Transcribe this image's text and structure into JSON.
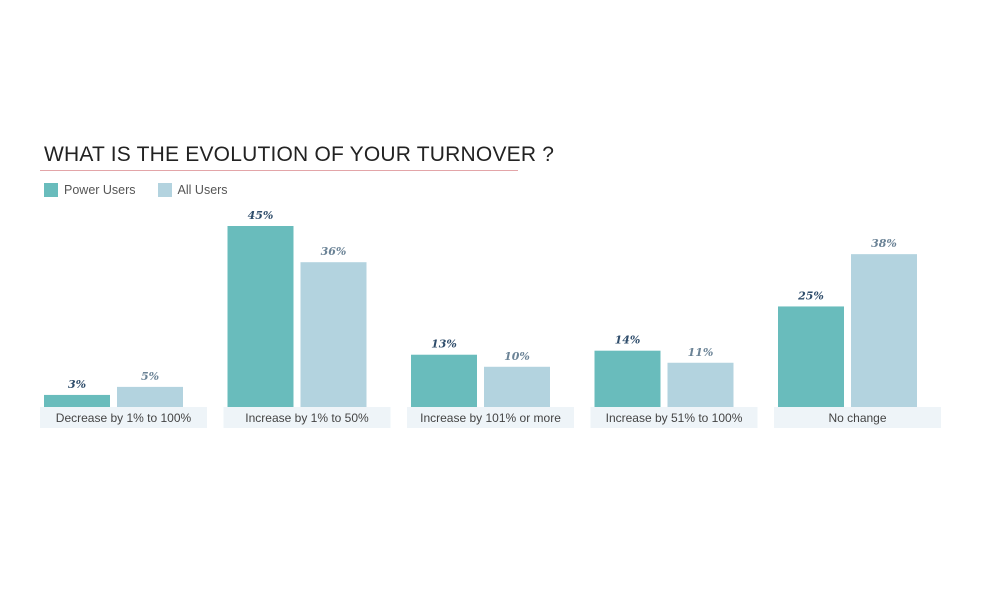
{
  "chart_data": {
    "type": "bar",
    "title": "WHAT IS THE EVOLUTION OF YOUR TURNOVER ?",
    "categories": [
      "Decrease by 1% to 100%",
      "Increase by 1% to 50%",
      "Increase by 101% or more",
      "Increase by 51% to 100%",
      "No change"
    ],
    "series": [
      {
        "name": "Power Users",
        "values": [
          3,
          45,
          13,
          14,
          25
        ],
        "labels": [
          "3%",
          "45%",
          "13%",
          "14%",
          "25%"
        ],
        "color": "#69bcbc",
        "label_color": "#2f4d6b"
      },
      {
        "name": "All Users",
        "values": [
          5,
          36,
          10,
          11,
          38
        ],
        "labels": [
          "5%",
          "36%",
          "10%",
          "11%",
          "38%"
        ],
        "color": "#b3d3df",
        "label_color": "#6b8396"
      }
    ],
    "ylim": [
      0,
      45
    ],
    "legend": "top-left",
    "grid": false,
    "colors": {
      "title_underline": "#e3a5a8",
      "category_band": "#eef4f8"
    }
  }
}
